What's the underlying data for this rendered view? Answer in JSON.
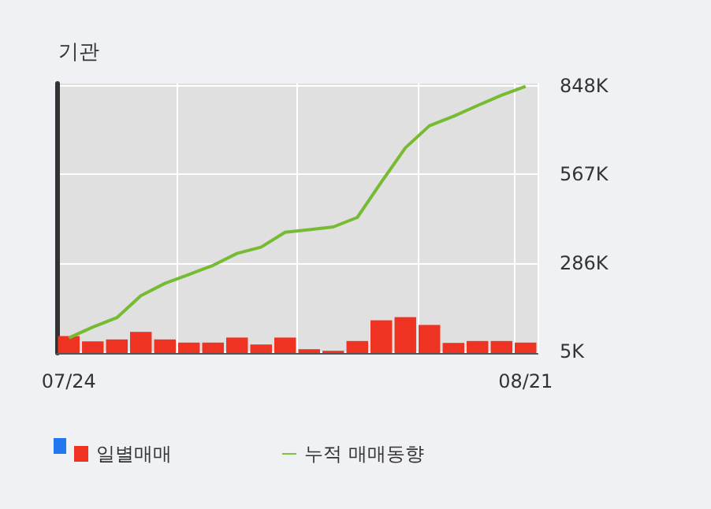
{
  "chart_data": {
    "type": "bar",
    "title": "기관",
    "categories": [
      "07/24",
      null,
      null,
      null,
      null,
      null,
      null,
      null,
      null,
      null,
      null,
      null,
      null,
      null,
      null,
      null,
      null,
      null,
      null,
      "08/21"
    ],
    "series": [
      {
        "name": "일별매매",
        "color": "#ee3322",
        "values": [
          54000,
          37000,
          43000,
          67000,
          43000,
          33000,
          33000,
          49000,
          27000,
          49000,
          12000,
          7000,
          38000,
          104000,
          114000,
          89000,
          32000,
          38000,
          38000,
          33000
        ]
      },
      {
        "name": "누적 매매동향",
        "type": "line",
        "color": "#77bb33",
        "values": [
          48000,
          82000,
          112000,
          182000,
          221000,
          249000,
          278000,
          316000,
          336000,
          383000,
          391000,
          400000,
          430000,
          542000,
          651000,
          721000,
          751000,
          785000,
          818000,
          846000
        ]
      }
    ],
    "ylim": [
      0,
      855000
    ],
    "yticks": [
      {
        "value": 5000,
        "label": "5K"
      },
      {
        "value": 286000,
        "label": "286K"
      },
      {
        "value": 567000,
        "label": "567K"
      },
      {
        "value": 848000,
        "label": "848K"
      }
    ],
    "grid": true,
    "legend": "bottom",
    "marker": "none",
    "line_style": "solid"
  }
}
